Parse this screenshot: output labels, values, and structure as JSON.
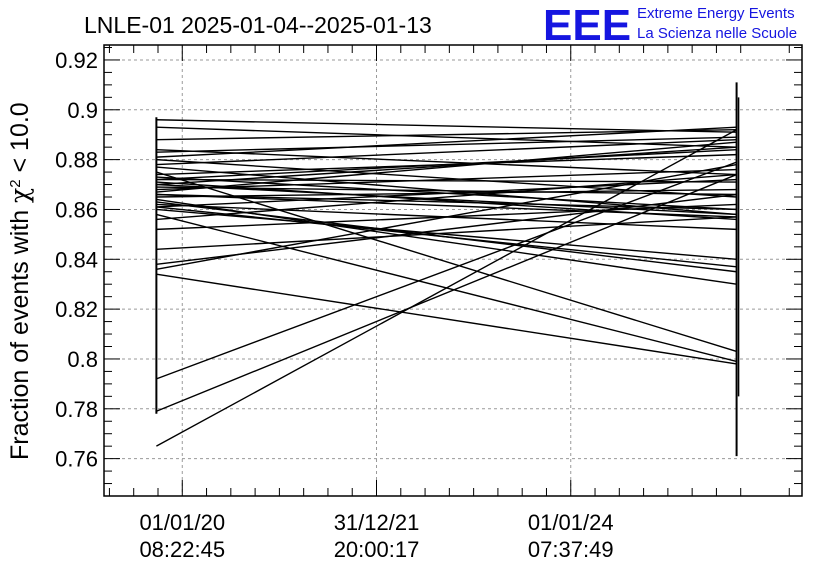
{
  "chart_data": {
    "type": "line",
    "title": "LNLE-01 2025-01-04--2025-01-13",
    "ylabel_main": "Fraction of events with ",
    "ylabel_chi": "χ",
    "ylabel_sup": "2",
    "ylabel_tail": " < 10.0",
    "ylim": [
      0.745,
      0.926
    ],
    "yticks": [
      0.76,
      0.78,
      0.8,
      0.82,
      0.84,
      0.86,
      0.88,
      0.9,
      0.92
    ],
    "ytick_labels": [
      "0.76",
      "0.78",
      "0.8",
      "0.82",
      "0.84",
      "0.86",
      "0.88",
      "0.9",
      "0.92"
    ],
    "xlim": [
      "2019-03-13",
      "2026-05-20"
    ],
    "xticks": [
      {
        "x": "2020-01-01T08:22:45",
        "date": "01/01/20",
        "time": "08:22:45"
      },
      {
        "x": "2021-12-31T20:00:17",
        "date": "31/12/21",
        "time": "20:00:17"
      },
      {
        "x": "2024-01-01T07:37:49",
        "date": "01/01/24",
        "time": "07:37:49"
      }
    ],
    "grid": true,
    "start_x": "2019-09-26",
    "end_x": "2025-09-16",
    "segments": [
      [
        0.896,
        0.891
      ],
      [
        0.893,
        0.885
      ],
      [
        0.888,
        0.892
      ],
      [
        0.884,
        0.874
      ],
      [
        0.883,
        0.889
      ],
      [
        0.881,
        0.893
      ],
      [
        0.88,
        0.865
      ],
      [
        0.878,
        0.888
      ],
      [
        0.877,
        0.858
      ],
      [
        0.875,
        0.803
      ],
      [
        0.874,
        0.882
      ],
      [
        0.873,
        0.86
      ],
      [
        0.872,
        0.871
      ],
      [
        0.871,
        0.856
      ],
      [
        0.87,
        0.885
      ],
      [
        0.869,
        0.866
      ],
      [
        0.868,
        0.876
      ],
      [
        0.867,
        0.887
      ],
      [
        0.866,
        0.857
      ],
      [
        0.865,
        0.868
      ],
      [
        0.864,
        0.83
      ],
      [
        0.863,
        0.835
      ],
      [
        0.862,
        0.852
      ],
      [
        0.861,
        0.872
      ],
      [
        0.86,
        0.84
      ],
      [
        0.858,
        0.799
      ],
      [
        0.856,
        0.874
      ],
      [
        0.852,
        0.862
      ],
      [
        0.844,
        0.857
      ],
      [
        0.838,
        0.866
      ],
      [
        0.836,
        0.878
      ],
      [
        0.834,
        0.798
      ],
      [
        0.792,
        0.879
      ],
      [
        0.779,
        0.874
      ],
      [
        0.765,
        0.892
      ],
      [
        0.87,
        0.858
      ],
      [
        0.866,
        0.86
      ],
      [
        0.872,
        0.884
      ],
      [
        0.861,
        0.837
      ]
    ],
    "start_band": [
      0.778,
      0.897
    ],
    "end_band": [
      0.761,
      0.911
    ]
  },
  "logo": {
    "letters": "EEE",
    "line1": "Extreme Energy Events",
    "line2": "La Scienza nelle Scuole",
    "color": "#1515e0"
  }
}
